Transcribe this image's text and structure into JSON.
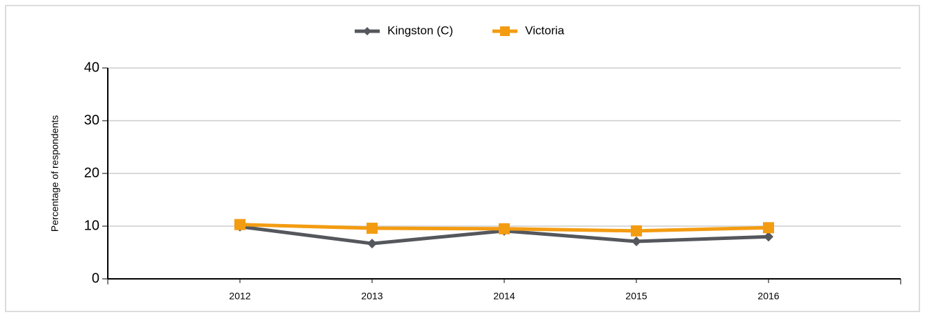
{
  "chart_data": {
    "type": "line",
    "y_label": "Percentage of respondents",
    "categories": [
      "2012",
      "2013",
      "2014",
      "2015",
      "2016"
    ],
    "series": [
      {
        "name": "Kingston (C)",
        "color": "#54575c",
        "marker": "diamond",
        "values": [
          9.9,
          6.7,
          9.1,
          7.1,
          8.0
        ]
      },
      {
        "name": "Victoria",
        "color": "#f39c12",
        "marker": "square",
        "values": [
          10.3,
          9.6,
          9.5,
          9.1,
          9.7
        ]
      }
    ],
    "ylim": [
      0,
      40
    ],
    "yticks": [
      0,
      10,
      20,
      30,
      40
    ],
    "grid": true,
    "legend": "top"
  }
}
